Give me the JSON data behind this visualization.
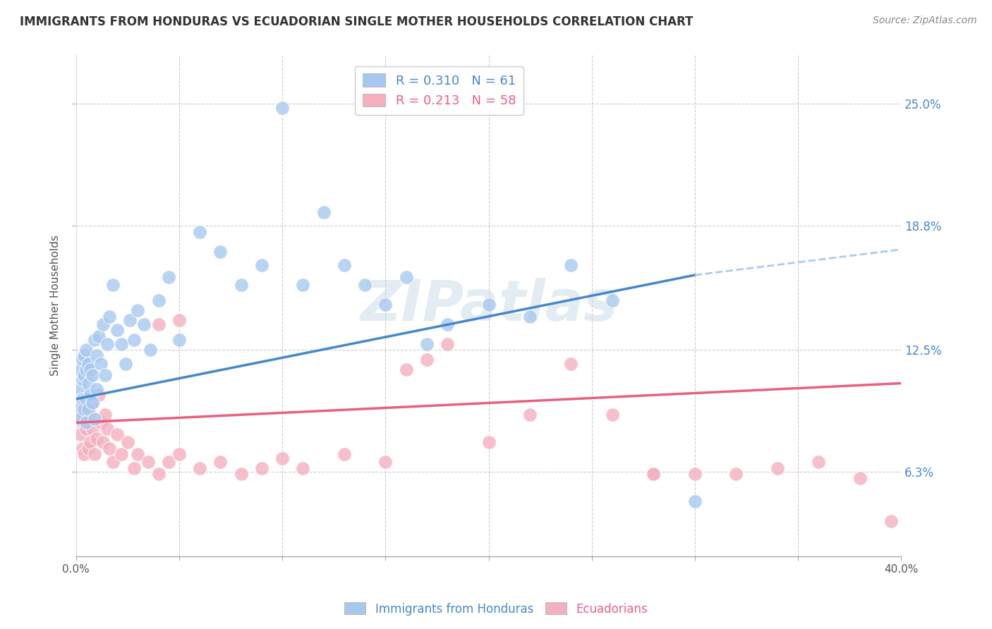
{
  "title": "IMMIGRANTS FROM HONDURAS VS ECUADORIAN SINGLE MOTHER HOUSEHOLDS CORRELATION CHART",
  "source": "Source: ZipAtlas.com",
  "ylabel": "Single Mother Households",
  "ytick_vals": [
    0.063,
    0.125,
    0.188,
    0.25
  ],
  "ytick_labels": [
    "6.3%",
    "12.5%",
    "18.8%",
    "25.0%"
  ],
  "xlim": [
    0.0,
    0.4
  ],
  "ylim": [
    0.02,
    0.275
  ],
  "legend_label1_blue": "Immigrants from Honduras",
  "legend_label2_pink": "Ecuadorians",
  "blue_color": "#a8c8f0",
  "pink_color": "#f5b0c0",
  "trendline_blue_color": "#4488cc",
  "trendline_pink_color": "#e86080",
  "trendline_ext_color": "#aaccee",
  "watermark": "ZIPatlas",
  "R_blue": 0.31,
  "R_pink": 0.213,
  "N_blue": 61,
  "N_pink": 58,
  "blue_points_x": [
    0.001,
    0.002,
    0.002,
    0.002,
    0.003,
    0.003,
    0.003,
    0.004,
    0.004,
    0.004,
    0.005,
    0.005,
    0.005,
    0.005,
    0.006,
    0.006,
    0.006,
    0.007,
    0.007,
    0.008,
    0.008,
    0.009,
    0.009,
    0.01,
    0.01,
    0.011,
    0.012,
    0.013,
    0.014,
    0.015,
    0.016,
    0.018,
    0.02,
    0.022,
    0.024,
    0.026,
    0.028,
    0.03,
    0.033,
    0.036,
    0.04,
    0.045,
    0.05,
    0.06,
    0.07,
    0.08,
    0.09,
    0.1,
    0.11,
    0.12,
    0.13,
    0.14,
    0.15,
    0.16,
    0.17,
    0.18,
    0.2,
    0.22,
    0.24,
    0.26,
    0.3
  ],
  "blue_points_y": [
    0.095,
    0.09,
    0.105,
    0.115,
    0.1,
    0.11,
    0.12,
    0.095,
    0.112,
    0.122,
    0.088,
    0.1,
    0.115,
    0.125,
    0.095,
    0.108,
    0.118,
    0.102,
    0.115,
    0.098,
    0.112,
    0.09,
    0.13,
    0.105,
    0.122,
    0.132,
    0.118,
    0.138,
    0.112,
    0.128,
    0.142,
    0.158,
    0.135,
    0.128,
    0.118,
    0.14,
    0.13,
    0.145,
    0.138,
    0.125,
    0.15,
    0.162,
    0.13,
    0.185,
    0.175,
    0.158,
    0.168,
    0.248,
    0.158,
    0.195,
    0.168,
    0.158,
    0.148,
    0.162,
    0.128,
    0.138,
    0.148,
    0.142,
    0.168,
    0.15,
    0.048
  ],
  "pink_points_x": [
    0.001,
    0.002,
    0.002,
    0.003,
    0.003,
    0.004,
    0.004,
    0.005,
    0.005,
    0.006,
    0.006,
    0.007,
    0.007,
    0.008,
    0.008,
    0.009,
    0.01,
    0.011,
    0.012,
    0.013,
    0.014,
    0.015,
    0.016,
    0.018,
    0.02,
    0.022,
    0.025,
    0.028,
    0.03,
    0.035,
    0.04,
    0.045,
    0.05,
    0.06,
    0.07,
    0.08,
    0.09,
    0.1,
    0.11,
    0.13,
    0.15,
    0.16,
    0.17,
    0.18,
    0.2,
    0.22,
    0.24,
    0.26,
    0.28,
    0.3,
    0.32,
    0.34,
    0.36,
    0.38,
    0.395,
    0.05,
    0.28,
    0.04
  ],
  "pink_points_y": [
    0.09,
    0.082,
    0.095,
    0.075,
    0.088,
    0.092,
    0.072,
    0.085,
    0.095,
    0.075,
    0.088,
    0.092,
    0.078,
    0.085,
    0.098,
    0.072,
    0.08,
    0.102,
    0.088,
    0.078,
    0.092,
    0.085,
    0.075,
    0.068,
    0.082,
    0.072,
    0.078,
    0.065,
    0.072,
    0.068,
    0.062,
    0.068,
    0.072,
    0.065,
    0.068,
    0.062,
    0.065,
    0.07,
    0.065,
    0.072,
    0.068,
    0.115,
    0.12,
    0.128,
    0.078,
    0.092,
    0.118,
    0.092,
    0.062,
    0.062,
    0.062,
    0.065,
    0.068,
    0.06,
    0.038,
    0.14,
    0.062,
    0.138
  ]
}
